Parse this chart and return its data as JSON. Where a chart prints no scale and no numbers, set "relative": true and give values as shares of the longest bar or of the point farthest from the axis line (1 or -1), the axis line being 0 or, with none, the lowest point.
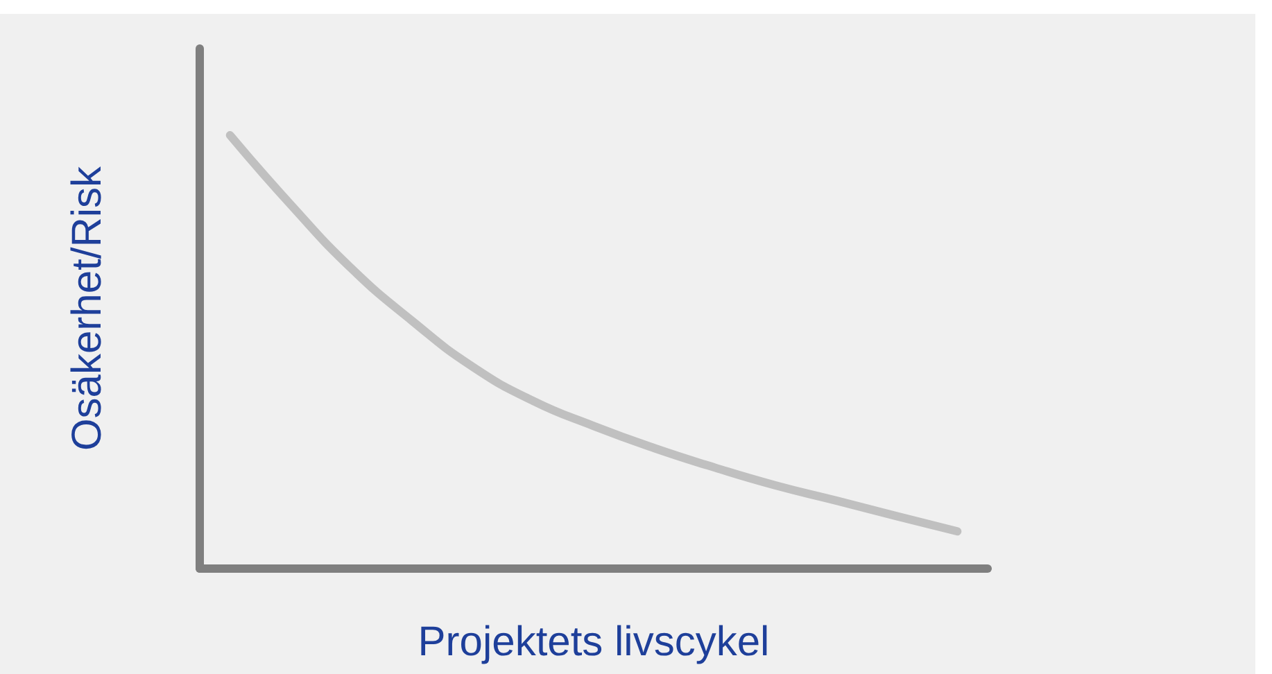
{
  "chart_data": {
    "type": "line",
    "relative": true,
    "xlabel": "Projektets livscykel",
    "ylabel": "Osäkerhet/Risk",
    "categories": [
      null,
      null,
      null,
      null,
      null,
      null,
      null,
      null,
      null,
      null,
      null,
      null,
      null
    ],
    "series": [
      {
        "color": "#c0c0c0",
        "values": [
          1.0,
          0.84,
          0.693,
          0.572,
          0.466,
          0.387,
          0.329,
          0.278,
          0.233,
          0.192,
          0.157,
          0.121,
          0.086
        ]
      }
    ],
    "grid": false,
    "marker": "none",
    "line_style": "solid"
  }
}
